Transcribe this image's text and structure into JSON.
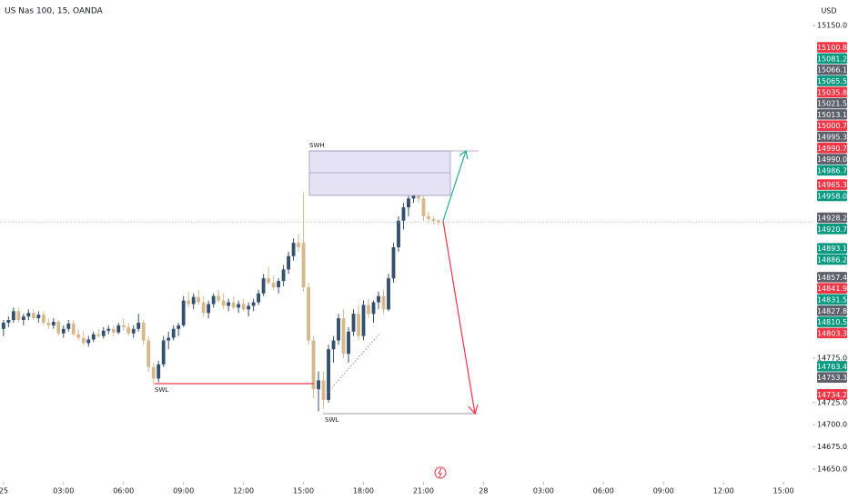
{
  "chart_data": {
    "type": "candlestick",
    "title": "US Nas 100, 15, OANDA",
    "currency": "USD",
    "up_color": "#34506f",
    "down_color": "#d6b88a",
    "ylim": [
      14637.7,
      15178.7
    ],
    "xlim": [
      -0.7,
      161.8
    ],
    "yticks": [
      {
        "value": 15150,
        "label": "15150.0"
      },
      {
        "value": 14775,
        "label": "14775.0"
      },
      {
        "value": 14725,
        "label": "14725.0"
      },
      {
        "value": 14700,
        "label": "14700.0"
      },
      {
        "value": 14675,
        "label": "14675.0"
      },
      {
        "value": 14650,
        "label": "14650.0"
      }
    ],
    "xticks": [
      {
        "value": 0,
        "label": "25"
      },
      {
        "value": 12,
        "label": "03:00"
      },
      {
        "value": 24,
        "label": "06:00"
      },
      {
        "value": 36,
        "label": "09:00"
      },
      {
        "value": 48,
        "label": "12:00"
      },
      {
        "value": 60,
        "label": "15:00"
      },
      {
        "value": 72,
        "label": "18:00"
      },
      {
        "value": 84,
        "label": "21:00"
      },
      {
        "value": 96,
        "label": "28"
      },
      {
        "value": 108,
        "label": "03:00"
      },
      {
        "value": 120,
        "label": "06:00"
      },
      {
        "value": 132,
        "label": "09:00"
      },
      {
        "value": 144,
        "label": "12:00"
      },
      {
        "value": 156,
        "label": "15:00"
      }
    ],
    "candles": [
      [
        14808,
        14818,
        14800,
        14815
      ],
      [
        14815,
        14822,
        14810,
        14818
      ],
      [
        14818,
        14832,
        14815,
        14828
      ],
      [
        14828,
        14832,
        14815,
        14818
      ],
      [
        14818,
        14825,
        14812,
        14822
      ],
      [
        14822,
        14830,
        14818,
        14826
      ],
      [
        14826,
        14830,
        14818,
        14820
      ],
      [
        14820,
        14828,
        14815,
        14824
      ],
      [
        14824,
        14828,
        14812,
        14815
      ],
      [
        14815,
        14820,
        14808,
        14812
      ],
      [
        14812,
        14820,
        14808,
        14816
      ],
      [
        14816,
        14818,
        14800,
        14803
      ],
      [
        14803,
        14812,
        14798,
        14808
      ],
      [
        14808,
        14818,
        14805,
        14814
      ],
      [
        14814,
        14818,
        14800,
        14802
      ],
      [
        14802,
        14808,
        14795,
        14798
      ],
      [
        14798,
        14805,
        14790,
        14792
      ],
      [
        14792,
        14800,
        14788,
        14796
      ],
      [
        14796,
        14805,
        14793,
        14802
      ],
      [
        14802,
        14808,
        14798,
        14800
      ],
      [
        14800,
        14810,
        14797,
        14806
      ],
      [
        14806,
        14812,
        14802,
        14808
      ],
      [
        14808,
        14812,
        14800,
        14804
      ],
      [
        14804,
        14815,
        14802,
        14812
      ],
      [
        14812,
        14820,
        14806,
        14810
      ],
      [
        14810,
        14815,
        14800,
        14803
      ],
      [
        14803,
        14812,
        14798,
        14808
      ],
      [
        14808,
        14825,
        14805,
        14815
      ],
      [
        14815,
        14818,
        14790,
        14795
      ],
      [
        14795,
        14800,
        14760,
        14765
      ],
      [
        14765,
        14770,
        14745,
        14752
      ],
      [
        14752,
        14772,
        14748,
        14768
      ],
      [
        14768,
        14800,
        14765,
        14795
      ],
      [
        14795,
        14805,
        14785,
        14798
      ],
      [
        14798,
        14812,
        14795,
        14808
      ],
      [
        14808,
        14815,
        14800,
        14812
      ],
      [
        14812,
        14845,
        14810,
        14840
      ],
      [
        14840,
        14850,
        14832,
        14836
      ],
      [
        14836,
        14848,
        14830,
        14844
      ],
      [
        14844,
        14852,
        14835,
        14838
      ],
      [
        14838,
        14845,
        14822,
        14826
      ],
      [
        14826,
        14840,
        14820,
        14836
      ],
      [
        14836,
        14848,
        14832,
        14845
      ],
      [
        14845,
        14852,
        14838,
        14840
      ],
      [
        14840,
        14848,
        14830,
        14834
      ],
      [
        14834,
        14842,
        14828,
        14838
      ],
      [
        14838,
        14845,
        14830,
        14832
      ],
      [
        14832,
        14840,
        14826,
        14836
      ],
      [
        14836,
        14842,
        14828,
        14830
      ],
      [
        14830,
        14838,
        14822,
        14834
      ],
      [
        14834,
        14842,
        14828,
        14838
      ],
      [
        14838,
        14852,
        14835,
        14848
      ],
      [
        14848,
        14870,
        14845,
        14865
      ],
      [
        14865,
        14878,
        14858,
        14860
      ],
      [
        14860,
        14868,
        14852,
        14855
      ],
      [
        14855,
        14865,
        14848,
        14862
      ],
      [
        14862,
        14880,
        14856,
        14875
      ],
      [
        14875,
        14895,
        14870,
        14890
      ],
      [
        14890,
        14910,
        14885,
        14905
      ],
      [
        14905,
        14915,
        14895,
        14900
      ],
      [
        14905,
        14962,
        14850,
        14855
      ],
      [
        14855,
        14860,
        14790,
        14795
      ],
      [
        14795,
        14800,
        14730,
        14740
      ],
      [
        14740,
        14760,
        14715,
        14750
      ],
      [
        14750,
        14760,
        14718,
        14728
      ],
      [
        14728,
        14790,
        14725,
        14785
      ],
      [
        14785,
        14800,
        14770,
        14795
      ],
      [
        14795,
        14825,
        14790,
        14820
      ],
      [
        14820,
        14830,
        14775,
        14780
      ],
      [
        14780,
        14810,
        14770,
        14805
      ],
      [
        14805,
        14830,
        14800,
        14825
      ],
      [
        14825,
        14835,
        14795,
        14800
      ],
      [
        14800,
        14840,
        14795,
        14835
      ],
      [
        14835,
        14842,
        14820,
        14825
      ],
      [
        14825,
        14840,
        14815,
        14838
      ],
      [
        14838,
        14850,
        14830,
        14845
      ],
      [
        14845,
        14852,
        14825,
        14830
      ],
      [
        14830,
        14870,
        14828,
        14865
      ],
      [
        14865,
        14905,
        14860,
        14900
      ],
      [
        14900,
        14935,
        14895,
        14930
      ],
      [
        14930,
        14950,
        14920,
        14945
      ],
      [
        14945,
        14960,
        14935,
        14955
      ],
      [
        14955,
        14985,
        14950,
        14980
      ],
      [
        14980,
        14988,
        14950,
        14955
      ],
      [
        14955,
        14978,
        14930,
        14935
      ],
      [
        14935,
        14940,
        14928,
        14932
      ],
      [
        14932,
        14935,
        14926,
        14930
      ],
      [
        14930,
        14932,
        14925,
        14928.2
      ]
    ],
    "price_tags": [
      {
        "value": 15100.8,
        "label": "15100.8",
        "color": "#f23645"
      },
      {
        "value": 15081.2,
        "label": "15081.2",
        "color": "#089981"
      },
      {
        "value": 15066.1,
        "label": "15066.1",
        "color": "#5d606b"
      },
      {
        "value": 15065.5,
        "label": "15065.5",
        "color": "#089981"
      },
      {
        "value": 15035.8,
        "label": "15035.8",
        "color": "#f23645"
      },
      {
        "value": 15021.5,
        "label": "15021.5",
        "color": "#5d606b"
      },
      {
        "value": 15013.1,
        "label": "15013.1",
        "color": "#5d606b"
      },
      {
        "value": 15000.7,
        "label": "15000.7",
        "color": "#f23645"
      },
      {
        "value": 14995.3,
        "label": "14995.3",
        "color": "#5d606b"
      },
      {
        "value": 14990.7,
        "label": "14990.7",
        "color": "#f23645"
      },
      {
        "value": 14990.0,
        "label": "14990.0",
        "color": "#5d606b"
      },
      {
        "value": 14986.7,
        "label": "14986.7",
        "color": "#089981"
      },
      {
        "value": 14965.3,
        "label": "14965.3",
        "color": "#f23645"
      },
      {
        "value": 14958.0,
        "label": "14958.0",
        "color": "#089981"
      },
      {
        "value": 14928.2,
        "label": "14928.2",
        "color": "#5d606b"
      },
      {
        "value": 14920.7,
        "label": "14920.7",
        "color": "#089981"
      },
      {
        "value": 14893.1,
        "label": "14893.1",
        "color": "#089981"
      },
      {
        "value": 14886.2,
        "label": "14886.2",
        "color": "#089981"
      },
      {
        "value": 14857.4,
        "label": "14857.4",
        "color": "#5d606b"
      },
      {
        "value": 14841.9,
        "label": "14841.9",
        "color": "#f23645"
      },
      {
        "value": 14831.5,
        "label": "14831.5",
        "color": "#089981"
      },
      {
        "value": 14827.8,
        "label": "14827.8",
        "color": "#5d606b"
      },
      {
        "value": 14810.5,
        "label": "14810.5",
        "color": "#089981"
      },
      {
        "value": 14803.3,
        "label": "14803.3",
        "color": "#f23645"
      },
      {
        "value": 14763.4,
        "label": "14763.4",
        "color": "#089981"
      },
      {
        "value": 14753.3,
        "label": "14753.3",
        "color": "#5d606b"
      },
      {
        "value": 14734.2,
        "label": "14734.2",
        "color": "#f23645"
      }
    ],
    "annotations": {
      "swh": "SWH",
      "swl_left": "SWL",
      "swl_right": "SWL"
    }
  }
}
